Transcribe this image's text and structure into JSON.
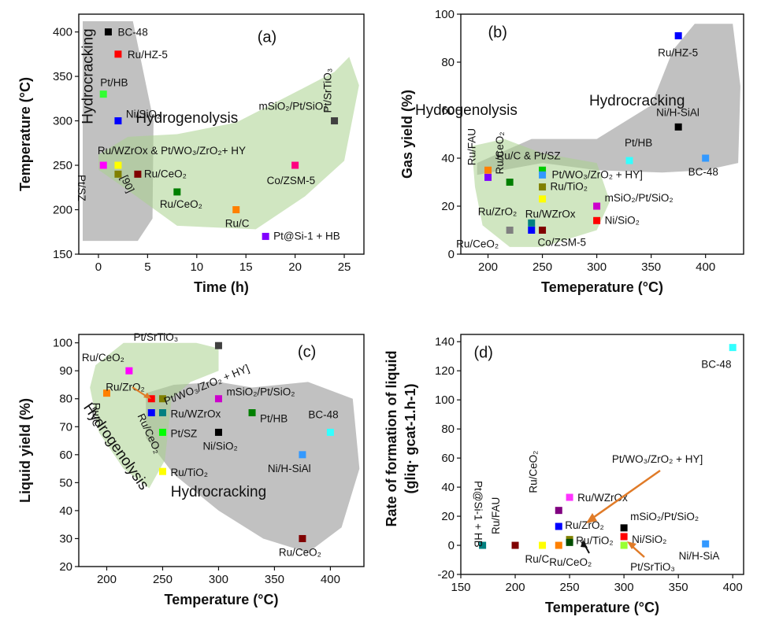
{
  "chart_data": [
    {
      "id": "a",
      "type": "scatter",
      "panel_label": "(a)",
      "xlabel": "Time (h)",
      "ylabel": "Temperature (°C)",
      "xlim": [
        -2,
        27
      ],
      "ylim": [
        150,
        420
      ],
      "xticks": [
        0,
        5,
        10,
        15,
        20,
        25
      ],
      "yticks": [
        150,
        200,
        250,
        300,
        350,
        400
      ],
      "regions": [
        {
          "label": "Hydrocracking",
          "color": "#8e8e8e"
        },
        {
          "label": "Hydrogenolysis",
          "color": "#a9d18e"
        }
      ],
      "points": [
        {
          "label": "BC-48",
          "x": 1,
          "y": 400,
          "color": "#000000"
        },
        {
          "label": "Ru/HZ-5",
          "x": 2,
          "y": 375,
          "color": "#ff0000"
        },
        {
          "label": "Pt/HB",
          "x": 0.5,
          "y": 330,
          "color": "#33ff33"
        },
        {
          "label": "Ni/SiO₂",
          "x": 2,
          "y": 300,
          "color": "#0000ff"
        },
        {
          "label": "Ru/WZrOx & Pt/WO₃/ZrO₂+ HY",
          "x": 2,
          "y": 250,
          "color": "#ffff00"
        },
        {
          "label": "",
          "x": 2,
          "y": 240,
          "color": "#808000"
        },
        {
          "label": "Pt/SZ",
          "x": 0.5,
          "y": 250,
          "color": "#ff00ff"
        },
        {
          "label": "Ru/CeO₂",
          "x": 4,
          "y": 240,
          "color": "#800000"
        },
        {
          "label": "[90]",
          "x": 4,
          "y": 240,
          "color": ""
        },
        {
          "label": "Ru/CeO₂",
          "x": 8,
          "y": 220,
          "color": "#007f00"
        },
        {
          "label": "Ru/C",
          "x": 14,
          "y": 200,
          "color": "#ff8000"
        },
        {
          "label": "Pt@Si-1 + HB",
          "x": 17,
          "y": 170,
          "color": "#8000ff"
        },
        {
          "label": "Co/ZSM-5",
          "x": 20,
          "y": 250,
          "color": "#ff0080"
        },
        {
          "label": "mSiO₂/Pt/SiO₂",
          "x": 24,
          "y": 300,
          "color": "#404040"
        },
        {
          "label": "Pt/SrTiO₃",
          "x": 24,
          "y": 300,
          "color": ""
        }
      ]
    },
    {
      "id": "b",
      "type": "scatter",
      "panel_label": "(b)",
      "xlabel": "Temeperature (°C)",
      "ylabel": "Gas yield (%)",
      "xlim": [
        175,
        435
      ],
      "ylim": [
        0,
        100
      ],
      "xticks": [
        200,
        250,
        300,
        350,
        400
      ],
      "yticks": [
        0,
        20,
        40,
        60,
        80,
        100
      ],
      "regions": [
        {
          "label": "Hydrocracking",
          "color": "#8e8e8e"
        },
        {
          "label": "Hydrogenolysis",
          "color": "#a9d18e"
        }
      ],
      "points": [
        {
          "label": "Ru/HZ-5",
          "x": 375,
          "y": 91,
          "color": "#0000ff"
        },
        {
          "label": "Ni/H-SiAl",
          "x": 375,
          "y": 53,
          "color": "#000000"
        },
        {
          "label": "BC-48",
          "x": 400,
          "y": 40,
          "color": "#3399ff"
        },
        {
          "label": "Pt/HB",
          "x": 330,
          "y": 39,
          "color": "#33ffff"
        },
        {
          "label": "Ru/FAU",
          "x": 200,
          "y": 35,
          "color": "#ff8000"
        },
        {
          "label": "",
          "x": 200,
          "y": 32,
          "color": "#8000ff"
        },
        {
          "label": "Ru/CeO₂",
          "x": 220,
          "y": 30,
          "color": "#007f00"
        },
        {
          "label": "Ru/C & Pt/SZ",
          "x": 250,
          "y": 35,
          "color": "#00cc00"
        },
        {
          "label": "Pt/WO₃/ZrO₂ + HY]",
          "x": 250,
          "y": 33,
          "color": "#3399ff"
        },
        {
          "label": "Ru/TiO₂",
          "x": 250,
          "y": 28,
          "color": "#808000"
        },
        {
          "label": "",
          "x": 250,
          "y": 23,
          "color": "#ffff00"
        },
        {
          "label": "mSiO₂/Pt/SiO₂",
          "x": 300,
          "y": 20,
          "color": "#cc00cc"
        },
        {
          "label": "Ni/SiO₂",
          "x": 300,
          "y": 14,
          "color": "#ff0000"
        },
        {
          "label": "Ru/ZrO₂",
          "x": 240,
          "y": 13,
          "color": "#008080"
        },
        {
          "label": "Ru/WZrOx",
          "x": 240,
          "y": 10,
          "color": "#0000ff"
        },
        {
          "label": "Ru/CeO₂",
          "x": 220,
          "y": 10,
          "color": "#808080"
        },
        {
          "label": "Co/ZSM-5",
          "x": 250,
          "y": 10,
          "color": "#800000"
        }
      ]
    },
    {
      "id": "c",
      "type": "scatter",
      "panel_label": "(c)",
      "xlabel": "Temperature (°C)",
      "ylabel": "Liquid yield (%)",
      "xlim": [
        175,
        430
      ],
      "ylim": [
        20,
        103
      ],
      "xticks": [
        200,
        250,
        300,
        350,
        400
      ],
      "yticks": [
        20,
        30,
        40,
        50,
        60,
        70,
        80,
        90,
        100
      ],
      "regions": [
        {
          "label": "Hydrocracking",
          "color": "#8e8e8e"
        },
        {
          "label": "Hydrogenolysis",
          "color": "#a9d18e"
        }
      ],
      "points": [
        {
          "label": "Pt/SrTiO₃",
          "x": 300,
          "y": 99,
          "color": "#404040"
        },
        {
          "label": "Ru/CeO₂",
          "x": 220,
          "y": 90,
          "color": "#ff00ff"
        },
        {
          "label": "Ru/C",
          "x": 200,
          "y": 82,
          "color": "#ff8000"
        },
        {
          "label": "Ru/ZrO₂",
          "x": 240,
          "y": 80,
          "color": "#ff0000"
        },
        {
          "label": "Pt/WO₃/ZrO₂ + HY]",
          "x": 250,
          "y": 80,
          "color": "#808000"
        },
        {
          "label": "mSiO₂/Pt/SiO₂",
          "x": 300,
          "y": 80,
          "color": "#cc00cc"
        },
        {
          "label": "",
          "x": 240,
          "y": 75,
          "color": "#0000ff"
        },
        {
          "label": "Ru/WZrOx",
          "x": 250,
          "y": 75,
          "color": "#008080"
        },
        {
          "label": "Pt/HB",
          "x": 330,
          "y": 75,
          "color": "#007f00"
        },
        {
          "label": "Ru/CeO₂",
          "x": 240,
          "y": 70,
          "color": ""
        },
        {
          "label": "Pt/SZ",
          "x": 250,
          "y": 68,
          "color": "#00ff00"
        },
        {
          "label": "Ni/SiO₂",
          "x": 300,
          "y": 68,
          "color": "#000000"
        },
        {
          "label": "BC-48",
          "x": 400,
          "y": 68,
          "color": "#33ffff"
        },
        {
          "label": "Ni/H-SiAl",
          "x": 375,
          "y": 60,
          "color": "#3399ff"
        },
        {
          "label": "Ru/TiO₂",
          "x": 250,
          "y": 54,
          "color": "#ffff00"
        },
        {
          "label": "Ru/CeO₂",
          "x": 375,
          "y": 30,
          "color": "#800000"
        }
      ]
    },
    {
      "id": "d",
      "type": "scatter",
      "panel_label": "(d)",
      "xlabel": "Temperature (°C)",
      "ylabel_line1": "Rate of formation of liquid",
      "ylabel_line2": "(gliq· gcat-1.h-1)",
      "xlim": [
        150,
        410
      ],
      "ylim": [
        -20,
        145
      ],
      "xticks": [
        150,
        200,
        250,
        300,
        350,
        400
      ],
      "yticks": [
        -20,
        0,
        20,
        40,
        60,
        80,
        100,
        120,
        140
      ],
      "points": [
        {
          "label": "BC-48",
          "x": 400,
          "y": 136,
          "color": "#33ffff"
        },
        {
          "label": "Ru/WZrOx",
          "x": 250,
          "y": 33,
          "color": "#ff33ff"
        },
        {
          "label": "Ru/CeO₂",
          "x": 240,
          "y": 24,
          "color": "#800080"
        },
        {
          "label": "Ru/ZrO₂",
          "x": 240,
          "y": 13,
          "color": "#0000ff"
        },
        {
          "label": "mSiO₂/Pt/SiO₂",
          "x": 300,
          "y": 12,
          "color": "#000000"
        },
        {
          "label": "Ni/SiO₂",
          "x": 300,
          "y": 6,
          "color": "#ff0000"
        },
        {
          "label": "Ru/TiO₂",
          "x": 250,
          "y": 4,
          "color": "#808000"
        },
        {
          "label": "",
          "x": 250,
          "y": 2,
          "color": "#004d00"
        },
        {
          "label": "Pt/WO₃/ZrO₂ + HY]",
          "x": 260,
          "y": 8,
          "color": ""
        },
        {
          "label": "Pt@Si-1 + HB",
          "x": 170,
          "y": 0,
          "color": "#008080"
        },
        {
          "label": "Ru/FAU",
          "x": 200,
          "y": 0,
          "color": "#800000"
        },
        {
          "label": "Ru/C",
          "x": 225,
          "y": 0,
          "color": "#ffff00"
        },
        {
          "label": "Ru/CeO₂",
          "x": 240,
          "y": 0,
          "color": "#ff8000"
        },
        {
          "label": "Pt/SrTiO₃",
          "x": 300,
          "y": 0,
          "color": "#99ff33"
        },
        {
          "label": "Ni/H-SiA",
          "x": 375,
          "y": 1,
          "color": "#3399ff"
        }
      ]
    }
  ]
}
